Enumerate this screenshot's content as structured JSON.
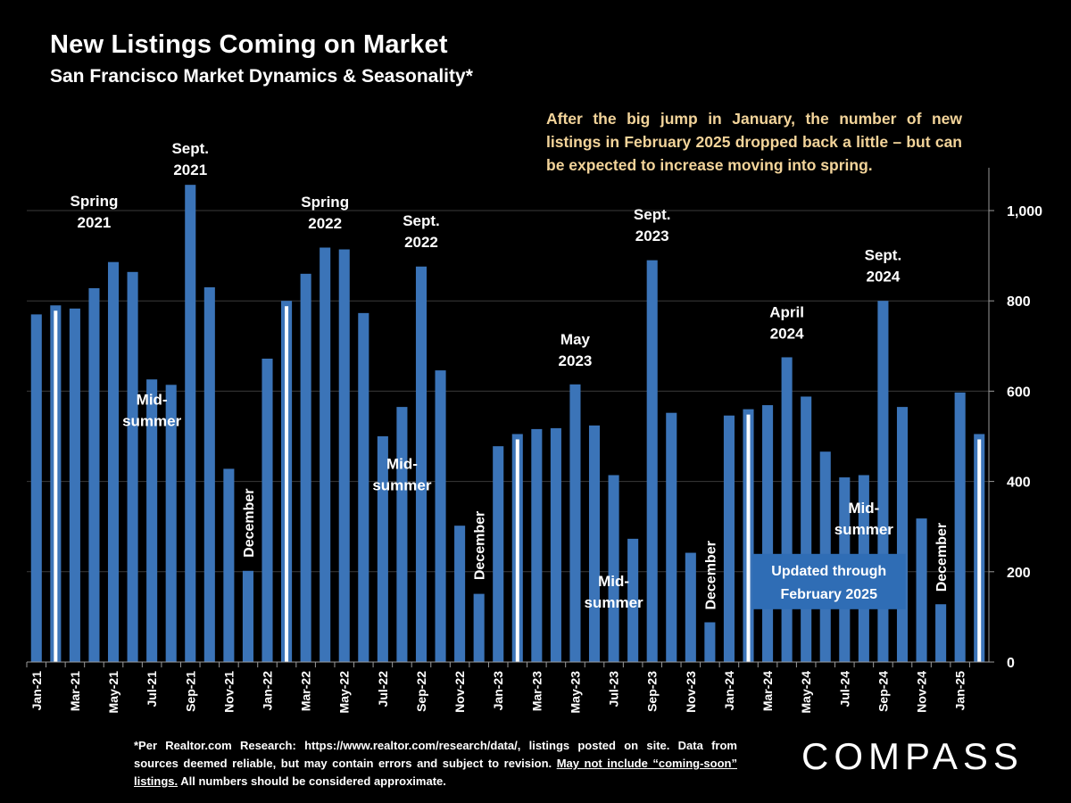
{
  "title": "New Listings Coming on Market",
  "subtitle": "San Francisco Market Dynamics & Seasonality*",
  "commentary": "After the big jump in January, the number of new listings in February 2025 dropped back a little – but can be expected to increase moving into spring.",
  "footnote": {
    "part1": "*Per Realtor.com Research: https://www.realtor.com/research/data/, listings posted on site. Data from sources deemed reliable, but may contain errors and subject to revision. ",
    "underlined": "May not include “coming-soon” listings.",
    "part2": " All numbers should be considered approximate."
  },
  "logo": "COMPASS",
  "colors": {
    "background": "#000000",
    "bar": "#3b74b8",
    "highlight_bar": "#ffffff",
    "commentary": "#f3d49a",
    "text": "#ffffff",
    "badge": "#2f6db5"
  },
  "chart_data": {
    "type": "bar",
    "categories": [
      "Jan-21",
      "Feb-21",
      "Mar-21",
      "Apr-21",
      "May-21",
      "Jun-21",
      "Jul-21",
      "Aug-21",
      "Sep-21",
      "Oct-21",
      "Nov-21",
      "Dec-21",
      "Jan-22",
      "Feb-22",
      "Mar-22",
      "Apr-22",
      "May-22",
      "Jun-22",
      "Jul-22",
      "Aug-22",
      "Sep-22",
      "Oct-22",
      "Nov-22",
      "Dec-22",
      "Jan-23",
      "Feb-23",
      "Mar-23",
      "Apr-23",
      "May-23",
      "Jun-23",
      "Jul-23",
      "Aug-23",
      "Sep-23",
      "Oct-23",
      "Nov-23",
      "Dec-23",
      "Jan-24",
      "Feb-24",
      "Mar-24",
      "Apr-24",
      "May-24",
      "Jun-24",
      "Jul-24",
      "Aug-24",
      "Sep-24",
      "Oct-24",
      "Nov-24",
      "Dec-24",
      "Jan-25",
      "Feb-25"
    ],
    "x_tick_labels": [
      "Jan-21",
      "Mar-21",
      "May-21",
      "Jul-21",
      "Sep-21",
      "Nov-21",
      "Jan-22",
      "Mar-22",
      "May-22",
      "Jul-22",
      "Sep-22",
      "Nov-22",
      "Jan-23",
      "Mar-23",
      "May-23",
      "Jul-23",
      "Sep-23",
      "Nov-23",
      "Jan-24",
      "Mar-24",
      "May-24",
      "Jul-24",
      "Sep-24",
      "Nov-24",
      "Jan-25"
    ],
    "values": [
      770,
      790,
      783,
      828,
      886,
      864,
      626,
      614,
      1057,
      830,
      428,
      202,
      672,
      800,
      860,
      918,
      914,
      773,
      500,
      565,
      876,
      646,
      302,
      151,
      478,
      505,
      516,
      518,
      615,
      524,
      414,
      273,
      890,
      552,
      242,
      88,
      546,
      560,
      569,
      675,
      588,
      466,
      409,
      414,
      800,
      565,
      318,
      128,
      597,
      505
    ],
    "highlighted_categories": [
      "Feb-21",
      "Feb-22",
      "Feb-23",
      "Feb-24",
      "Feb-25"
    ],
    "ylim": [
      0,
      1080
    ],
    "y_ticks": [
      0,
      200,
      400,
      600,
      800,
      "1,000"
    ],
    "y_tick_values": [
      0,
      200,
      400,
      600,
      800,
      1000
    ],
    "grid": true,
    "annotations": [
      {
        "lines": [
          "Spring",
          "2021"
        ],
        "category": "Apr-21",
        "value": 1010
      },
      {
        "lines": [
          "Sept.",
          "2021"
        ],
        "category": "Sep-21",
        "value": 1126
      },
      {
        "lines": [
          "Mid-",
          "summer"
        ],
        "category": "Jul-21",
        "value": 570
      },
      {
        "lines": [
          "December"
        ],
        "category": "Dec-21",
        "value": 308,
        "rotated": true
      },
      {
        "lines": [
          "Spring",
          "2022"
        ],
        "category": "Apr-22",
        "value": 1008
      },
      {
        "lines": [
          "Sept.",
          "2022"
        ],
        "category": "Sep-22",
        "value": 966
      },
      {
        "lines": [
          "Mid-",
          "summer"
        ],
        "category": "Aug-22",
        "value": 428
      },
      {
        "lines": [
          "December"
        ],
        "category": "Dec-22",
        "value": 258,
        "rotated": true
      },
      {
        "lines": [
          "May",
          "2023"
        ],
        "category": "May-23",
        "value": 704
      },
      {
        "lines": [
          "Sept.",
          "2023"
        ],
        "category": "Sep-23",
        "value": 980
      },
      {
        "lines": [
          "Mid-",
          "summer"
        ],
        "category": "Jul-23",
        "value": 168
      },
      {
        "lines": [
          "December"
        ],
        "category": "Dec-23",
        "value": 192,
        "rotated": true
      },
      {
        "lines": [
          "April",
          "2024"
        ],
        "category": "Apr-24",
        "value": 764
      },
      {
        "lines": [
          "Sept.",
          "2024"
        ],
        "category": "Sep-24",
        "value": 890
      },
      {
        "lines": [
          "Mid-",
          "summer"
        ],
        "category": "Aug-24",
        "value": 330
      },
      {
        "lines": [
          "December"
        ],
        "category": "Dec-24",
        "value": 232,
        "rotated": true
      }
    ],
    "badge": {
      "lines": [
        "Updated through",
        "February 2025"
      ],
      "category": "Jun-24",
      "value": 200
    }
  }
}
